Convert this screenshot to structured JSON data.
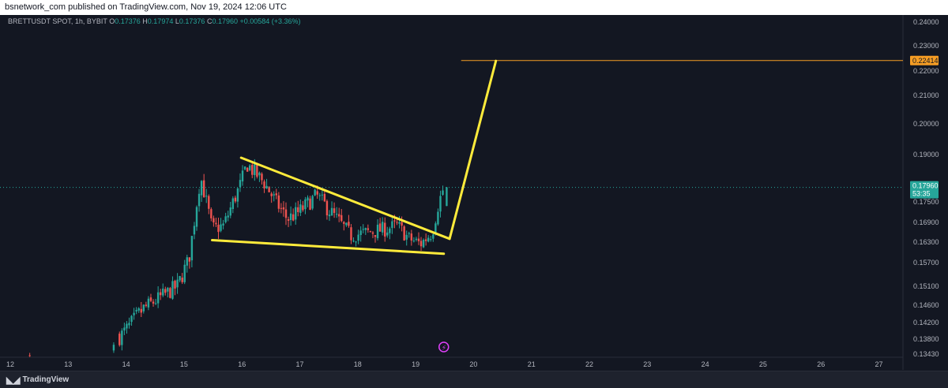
{
  "header": {
    "published": "bsnetwork_com published on TradingView.com, Nov 19, 2024 12:06 UTC"
  },
  "legend": {
    "symbol": "BRETTUSDT SPOT, 1h, BYBIT",
    "o_label": "O",
    "o_value": "0.17376",
    "h_label": "H",
    "h_value": "0.17974",
    "l_label": "L",
    "l_value": "0.17376",
    "c_label": "C",
    "c_value": "0.17960",
    "change": "+0.00584 (+3.36%)"
  },
  "footer": {
    "brand": "TradingView",
    "brand_icon": "tradingview-logo-icon"
  },
  "colors": {
    "background": "#131722",
    "up": "#26a69a",
    "down": "#ef5350",
    "drawing": "#ffeb3b",
    "target": "#f59d24",
    "last_price": "#26a69a",
    "axis_text": "#b2b5be"
  },
  "chart_data": {
    "type": "candlestick",
    "symbol": "BRETTUSDT SPOT",
    "interval": "1h",
    "exchange": "BYBIT",
    "x_ticks": [
      "12",
      "13",
      "14",
      "15",
      "16",
      "17",
      "18",
      "19",
      "20",
      "21",
      "22",
      "23",
      "24",
      "25",
      "26",
      "27"
    ],
    "y_ticks": [
      "0.24000",
      "0.23000",
      "0.22000",
      "0.21000",
      "0.20000",
      "0.19000",
      "0.17500",
      "0.16900",
      "0.16300",
      "0.15700",
      "0.15100",
      "0.14600",
      "0.14200",
      "0.13800",
      "0.13430"
    ],
    "ylim": [
      0.1343,
      0.2414
    ],
    "grid": false,
    "last_price": {
      "value": 0.1796,
      "label": "0.17960",
      "countdown": "53:35"
    },
    "target": {
      "value": 0.22414,
      "label": "0.22414"
    },
    "price_path": [
      {
        "day": 12.4,
        "close": 0.1343
      },
      {
        "day": 13.8,
        "close": 0.137
      },
      {
        "day": 14.0,
        "close": 0.14
      },
      {
        "day": 14.3,
        "close": 0.145
      },
      {
        "day": 14.6,
        "close": 0.148
      },
      {
        "day": 14.9,
        "close": 0.151
      },
      {
        "day": 15.1,
        "close": 0.158
      },
      {
        "day": 15.3,
        "close": 0.183
      },
      {
        "day": 15.5,
        "close": 0.167
      },
      {
        "day": 15.7,
        "close": 0.168
      },
      {
        "day": 16.0,
        "close": 0.181
      },
      {
        "day": 16.1,
        "close": 0.187
      },
      {
        "day": 16.4,
        "close": 0.181
      },
      {
        "day": 16.6,
        "close": 0.175
      },
      {
        "day": 16.8,
        "close": 0.17
      },
      {
        "day": 17.0,
        "close": 0.172
      },
      {
        "day": 17.3,
        "close": 0.177
      },
      {
        "day": 17.6,
        "close": 0.171
      },
      {
        "day": 17.9,
        "close": 0.165
      },
      {
        "day": 18.2,
        "close": 0.166
      },
      {
        "day": 18.5,
        "close": 0.167
      },
      {
        "day": 18.7,
        "close": 0.168
      },
      {
        "day": 18.9,
        "close": 0.164
      },
      {
        "day": 19.1,
        "close": 0.1625
      },
      {
        "day": 19.3,
        "close": 0.166
      },
      {
        "day": 19.4,
        "close": 0.174
      },
      {
        "day": 19.5,
        "close": 0.1796
      }
    ],
    "drawings": {
      "wedge_upper": [
        [
          16.0,
          0.189
        ],
        [
          19.6,
          0.164
        ]
      ],
      "wedge_lower": [
        [
          15.5,
          0.1636
        ],
        [
          19.5,
          0.1596
        ]
      ],
      "projection": [
        [
          19.6,
          0.164
        ],
        [
          20.4,
          0.224
        ]
      ],
      "target_line_start_day": 19.8
    }
  }
}
